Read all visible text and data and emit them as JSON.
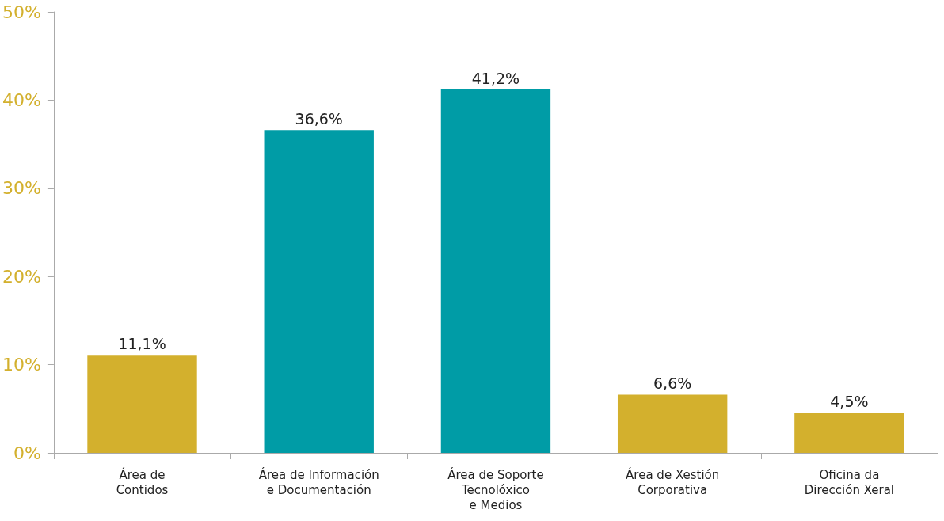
{
  "chart_data": {
    "type": "bar",
    "categories": [
      "Área de\nContidos",
      "Área de Información\ne Documentación",
      "Área de Soporte\nTecnolóxico\ne Medios",
      "Área de Xestión\nCorporativa",
      "Oficina da\nDirección Xeral"
    ],
    "values": [
      11.1,
      36.6,
      41.2,
      6.6,
      4.5
    ],
    "value_labels": [
      "11,1%",
      "36,6%",
      "41,2%",
      "6,6%",
      "4,5%"
    ],
    "colors": [
      "#d3b02d",
      "#009ca6",
      "#009ca6",
      "#d3b02d",
      "#d3b02d"
    ],
    "ylim": [
      0,
      50
    ],
    "yticks": [
      {
        "value": 0,
        "label": "0%"
      },
      {
        "value": 10,
        "label": "10%"
      },
      {
        "value": 20,
        "label": "20%"
      },
      {
        "value": 30,
        "label": "30%"
      },
      {
        "value": 40,
        "label": "40%"
      },
      {
        "value": 50,
        "label": "50%"
      }
    ],
    "grid": false
  }
}
